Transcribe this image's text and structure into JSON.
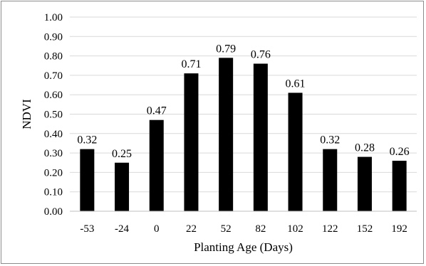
{
  "chart_data": {
    "type": "bar",
    "categories": [
      "-53",
      "-24",
      "0",
      "22",
      "52",
      "82",
      "102",
      "122",
      "152",
      "192"
    ],
    "values": [
      0.32,
      0.25,
      0.47,
      0.71,
      0.79,
      0.76,
      0.61,
      0.32,
      0.28,
      0.26
    ],
    "data_labels": [
      "0.32",
      "0.25",
      "0.47",
      "0.71",
      "0.79",
      "0.76",
      "0.61",
      "0.32",
      "0.28",
      "0.26"
    ],
    "title": "",
    "xlabel": "Planting Age (Days)",
    "ylabel": "NDVI",
    "ylim": [
      0,
      1
    ],
    "yticks": [
      "0.00",
      "0.10",
      "0.20",
      "0.30",
      "0.40",
      "0.50",
      "0.60",
      "0.70",
      "0.80",
      "0.90",
      "1.00"
    ],
    "grid": true,
    "bar_color": "#000000",
    "grid_color": "#d9d9d9"
  }
}
